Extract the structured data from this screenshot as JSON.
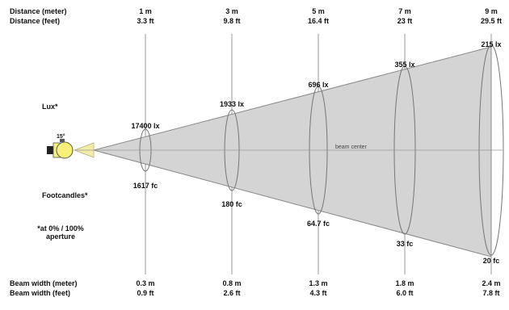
{
  "header": {
    "row1_label": "Distance (meter)",
    "row2_label": "Distance (feet)",
    "distances_m": [
      "1 m",
      "3 m",
      "5 m",
      "7 m",
      "9 m"
    ],
    "distances_ft": [
      "3.3 ft",
      "9.8 ft",
      "16.4 ft",
      "23 ft",
      "29.5 ft"
    ]
  },
  "left": {
    "lux_label": "Lux*",
    "footcandles_label": "Footcandles*",
    "note": "*at 0% / 100% aperture",
    "angle_label": "15°"
  },
  "beam": {
    "center_label": "beam center",
    "lux_values": [
      "17400 lx",
      "1933 lx",
      "696 lx",
      "355 lx",
      "215 lx"
    ],
    "fc_values": [
      "1617 fc",
      "180 fc",
      "64.7 fc",
      "33 fc",
      "20 fc"
    ]
  },
  "footer": {
    "row1_label": "Beam width (meter)",
    "row2_label": "Beam width (feet)",
    "widths_m": [
      "0.3 m",
      "0.8 m",
      "1.3 m",
      "1.8 m",
      "2.4 m"
    ],
    "widths_ft": [
      "0.9 ft",
      "2.6 ft",
      "4.3 ft",
      "6.0 ft",
      "7.8 ft"
    ]
  },
  "colors": {
    "cone_fill": "#d4d4d4",
    "cone_stroke": "#888888",
    "near_fill": "#f2eca8",
    "fixture_fill": "#f7f17a",
    "grid_line": "#9a9a9a"
  }
}
